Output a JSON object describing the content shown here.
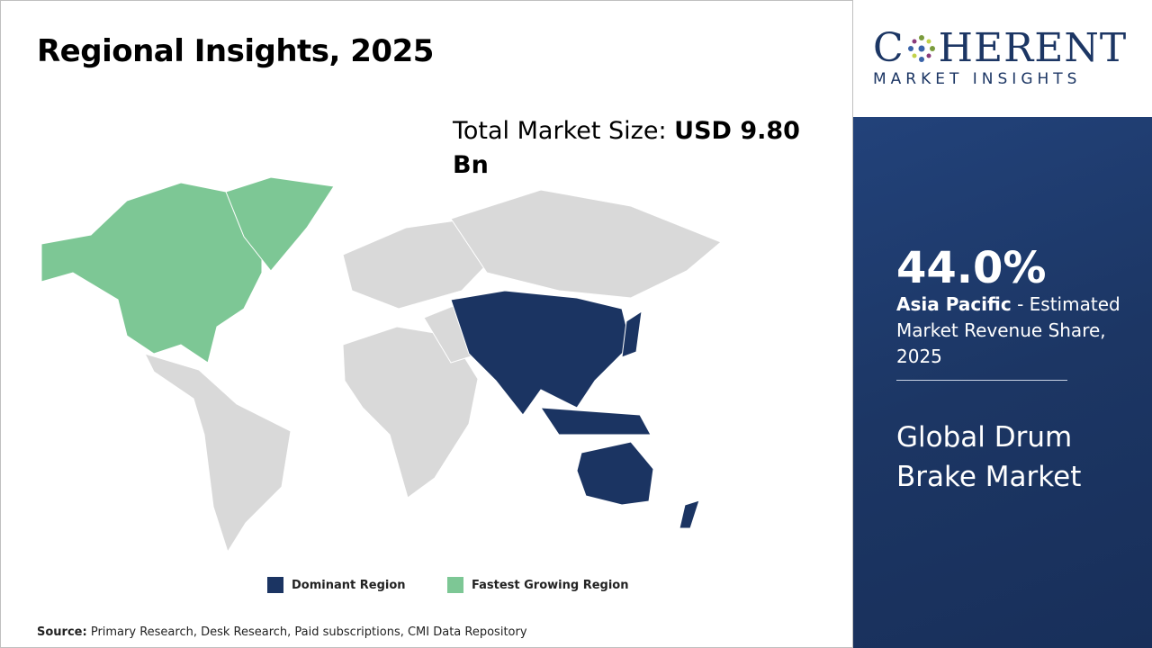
{
  "header": {
    "title": "Regional Insights, 2025"
  },
  "market_size": {
    "label": "Total Market Size:",
    "value": "USD 9.80 Bn"
  },
  "legend": {
    "items": [
      "Dominant Region",
      "Fastest Growing Region"
    ]
  },
  "source": {
    "label": "Source:",
    "text": "Primary Research, Desk Research, Paid subscriptions, CMI Data Repository"
  },
  "logo": {
    "name_start": "C",
    "name_end": "HERENT",
    "tagline": "MARKET INSIGHTS"
  },
  "highlight": {
    "share": "44.0%",
    "region": "Asia Pacific",
    "description": "- Estimated Market Revenue Share, 2025"
  },
  "market_name": "Global Drum Brake Market"
}
